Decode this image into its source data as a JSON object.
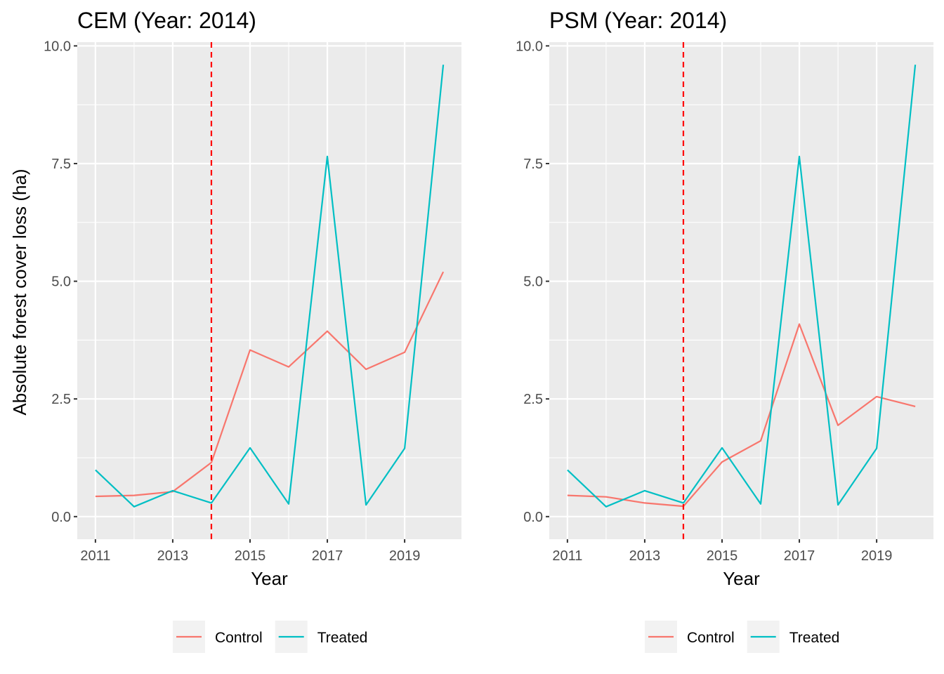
{
  "figure": {
    "ylabel": "Absolute forest cover loss (ha)"
  },
  "colors": {
    "control": "#F8766D",
    "treated": "#00BFC4",
    "vline": "#FF0000",
    "panel_bg": "#EBEBEB",
    "grid": "#FFFFFF",
    "tick_text": "#4D4D4D",
    "tick_mark": "#333333",
    "legend_key_bg": "#F2F2F2"
  },
  "chart_data": [
    {
      "type": "line",
      "title": "CEM (Year: 2014)",
      "xlabel": "Year",
      "ylabel": "Absolute forest cover loss (ha)",
      "x": [
        2011,
        2012,
        2013,
        2014,
        2015,
        2016,
        2017,
        2018,
        2019,
        2020
      ],
      "xlim": [
        2010.53,
        2020.47
      ],
      "ylim": [
        -0.48,
        10.08
      ],
      "xticks": [
        2011,
        2013,
        2015,
        2017,
        2019
      ],
      "xtick_labels": [
        "2011",
        "2013",
        "2015",
        "2017",
        "2019"
      ],
      "yticks": [
        0,
        2.5,
        5,
        7.5,
        10
      ],
      "ytick_labels": [
        "0.0",
        "2.5",
        "5.0",
        "7.5",
        "10.0"
      ],
      "vline": 2014,
      "grid": true,
      "legend_position": "bottom",
      "series": [
        {
          "name": "Control",
          "values": [
            0.43,
            0.45,
            0.53,
            1.15,
            3.54,
            3.18,
            3.94,
            3.13,
            3.49,
            5.2
          ]
        },
        {
          "name": "Treated",
          "values": [
            0.99,
            0.21,
            0.55,
            0.29,
            1.46,
            0.27,
            7.65,
            0.25,
            1.45,
            9.6
          ]
        }
      ]
    },
    {
      "type": "line",
      "title": "PSM (Year: 2014)",
      "xlabel": "Year",
      "ylabel": "",
      "x": [
        2011,
        2012,
        2013,
        2014,
        2015,
        2016,
        2017,
        2018,
        2019,
        2020
      ],
      "xlim": [
        2010.53,
        2020.47
      ],
      "ylim": [
        -0.48,
        10.08
      ],
      "xticks": [
        2011,
        2013,
        2015,
        2017,
        2019
      ],
      "xtick_labels": [
        "2011",
        "2013",
        "2015",
        "2017",
        "2019"
      ],
      "yticks": [
        0,
        2.5,
        5,
        7.5,
        10
      ],
      "ytick_labels": [
        "0.0",
        "2.5",
        "5.0",
        "7.5",
        "10.0"
      ],
      "vline": 2014,
      "grid": true,
      "legend_position": "bottom",
      "series": [
        {
          "name": "Control",
          "values": [
            0.45,
            0.42,
            0.29,
            0.22,
            1.16,
            1.61,
            4.09,
            1.94,
            2.55,
            2.34
          ]
        },
        {
          "name": "Treated",
          "values": [
            0.99,
            0.21,
            0.55,
            0.29,
            1.46,
            0.27,
            7.65,
            0.25,
            1.45,
            9.6
          ]
        }
      ]
    }
  ]
}
